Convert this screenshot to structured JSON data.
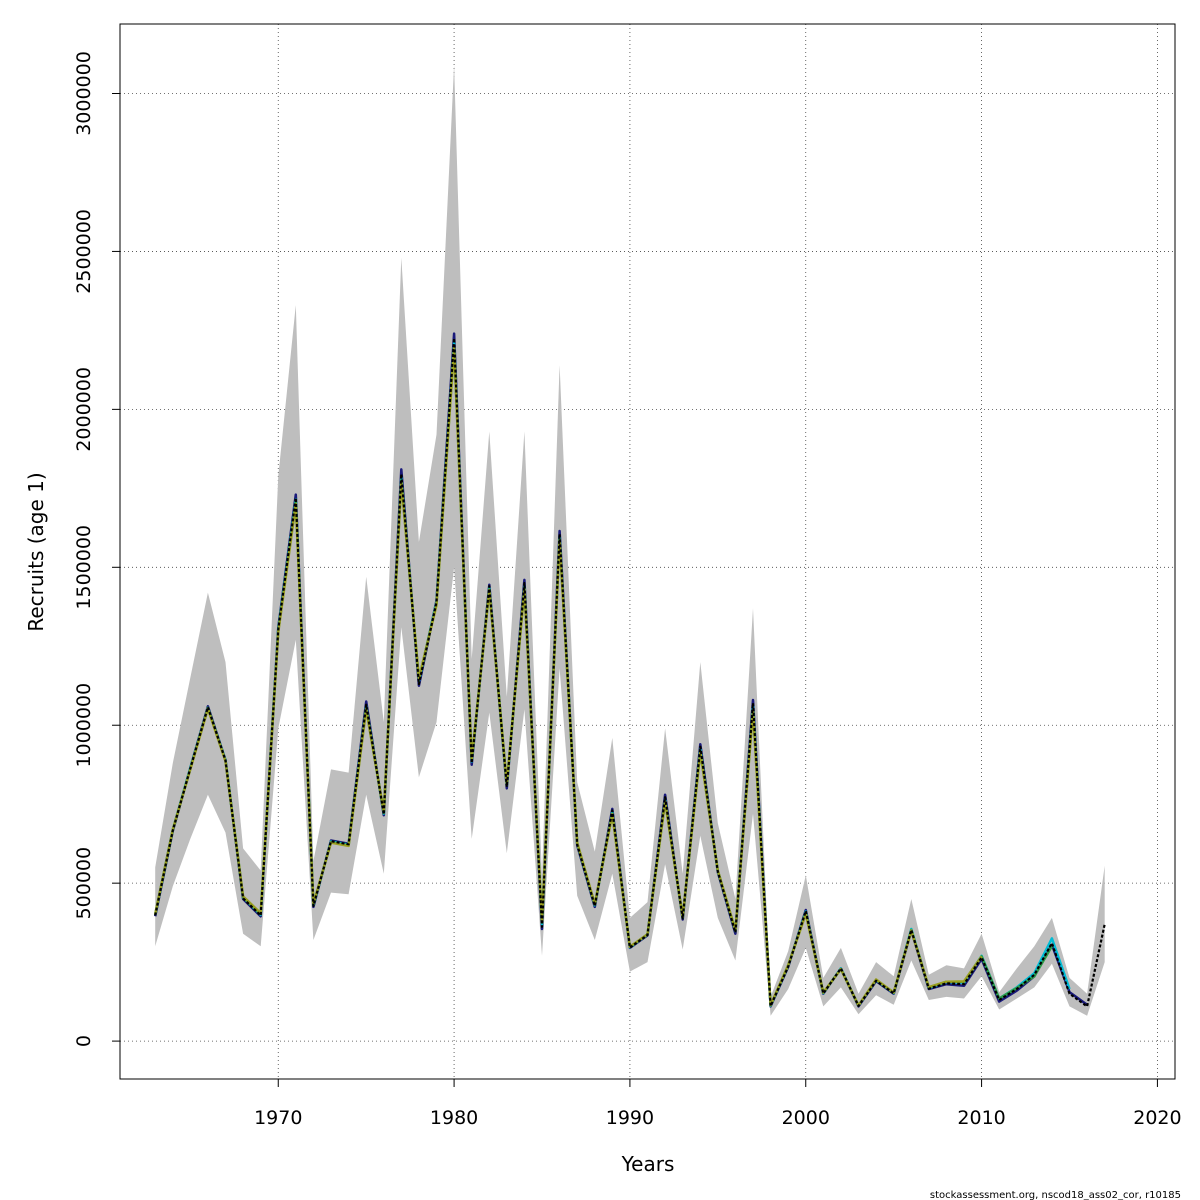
{
  "chart_data": {
    "type": "line",
    "title": "",
    "xlabel": "Years",
    "ylabel": "Recruits (age 1)",
    "xlim": [
      1961,
      2021
    ],
    "ylim": [
      -120000,
      3220000
    ],
    "x_ticks": [
      1970,
      1980,
      1990,
      2000,
      2010,
      2020
    ],
    "y_ticks": [
      0,
      500000,
      1000000,
      1500000,
      2000000,
      2500000,
      3000000
    ],
    "grid": true,
    "legend": "none",
    "credit": "stockassessment.org, nscod18_ass02_cor, r10185",
    "band_color": "#bebebe",
    "band": {
      "x": [
        1963,
        1964,
        1965,
        1966,
        1967,
        1968,
        1969,
        1970,
        1971,
        1972,
        1973,
        1974,
        1975,
        1976,
        1977,
        1978,
        1979,
        1980,
        1981,
        1982,
        1983,
        1984,
        1985,
        1986,
        1987,
        1988,
        1989,
        1990,
        1991,
        1992,
        1993,
        1994,
        1995,
        1996,
        1997,
        1998,
        1999,
        2000,
        2001,
        2002,
        2003,
        2004,
        2005,
        2006,
        2007,
        2008,
        2009,
        2010,
        2011,
        2012,
        2013,
        2014,
        2015,
        2016,
        2017
      ],
      "lower": [
        300000,
        490000,
        640000,
        780000,
        660000,
        340000,
        300000,
        990000,
        1270000,
        320000,
        470000,
        465000,
        780000,
        530000,
        1310000,
        835000,
        1010000,
        1500000,
        640000,
        1040000,
        595000,
        1050000,
        270000,
        1180000,
        460000,
        320000,
        530000,
        220000,
        250000,
        560000,
        290000,
        650000,
        390000,
        255000,
        720000,
        80000,
        165000,
        295000,
        110000,
        170000,
        85000,
        145000,
        115000,
        255000,
        130000,
        140000,
        135000,
        205000,
        100000,
        135000,
        170000,
        245000,
        110000,
        80000,
        250000
      ],
      "upper": [
        550000,
        880000,
        1150000,
        1420000,
        1200000,
        610000,
        540000,
        1790000,
        2330000,
        570000,
        860000,
        850000,
        1470000,
        1010000,
        2480000,
        1580000,
        1920000,
        3090000,
        1210000,
        1930000,
        1090000,
        1930000,
        520000,
        2140000,
        820000,
        600000,
        960000,
        390000,
        440000,
        990000,
        530000,
        1200000,
        690000,
        450000,
        1370000,
        140000,
        285000,
        525000,
        200000,
        295000,
        150000,
        250000,
        205000,
        450000,
        210000,
        240000,
        230000,
        340000,
        155000,
        230000,
        300000,
        390000,
        200000,
        150000,
        555000
      ]
    },
    "series": [
      {
        "color": "#1a1a7a",
        "x": [
          1963,
          1964,
          1965,
          1966,
          1967,
          1968,
          1969,
          1970,
          1971,
          1972,
          1973,
          1974,
          1975,
          1976,
          1977,
          1978,
          1979,
          1980,
          1981,
          1982,
          1983,
          1984,
          1985,
          1986,
          1987,
          1988,
          1989,
          1990,
          1991,
          1992,
          1993,
          1994,
          1995,
          1996,
          1997,
          1998,
          1999,
          2000,
          2001,
          2002,
          2003,
          2004,
          2005,
          2006,
          2007,
          2008,
          2009,
          2010,
          2011,
          2012,
          2013,
          2014,
          2015,
          2016
        ],
        "values": [
          395000,
          665000,
          865000,
          1060000,
          890000,
          450000,
          395000,
          1310000,
          1730000,
          425000,
          635000,
          625000,
          1075000,
          715000,
          1810000,
          1125000,
          1395000,
          2240000,
          875000,
          1445000,
          800000,
          1460000,
          355000,
          1615000,
          620000,
          425000,
          735000,
          295000,
          335000,
          780000,
          385000,
          940000,
          535000,
          340000,
          1080000,
          110000,
          235000,
          415000,
          150000,
          230000,
          110000,
          190000,
          150000,
          350000,
          165000,
          180000,
          175000,
          260000,
          125000,
          160000,
          205000,
          305000,
          155000,
          115000
        ]
      },
      {
        "color": "#00bcd4",
        "x": [
          1963,
          1964,
          1965,
          1966,
          1967,
          1968,
          1969,
          1970,
          1971,
          1972,
          1973,
          1974,
          1975,
          1976,
          1977,
          1978,
          1979,
          1980,
          1981,
          1982,
          1983,
          1984,
          1985,
          1986,
          1987,
          1988,
          1989,
          1990,
          1991,
          1992,
          1993,
          1994,
          1995,
          1996,
          1997,
          1998,
          1999,
          2000,
          2001,
          2002,
          2003,
          2004,
          2005,
          2006,
          2007,
          2008,
          2009,
          2010,
          2011,
          2012,
          2013,
          2014,
          2015
        ],
        "values": [
          400000,
          670000,
          865000,
          1055000,
          890000,
          455000,
          400000,
          1305000,
          1715000,
          430000,
          632000,
          622000,
          1060000,
          720000,
          1785000,
          1140000,
          1390000,
          2210000,
          885000,
          1435000,
          810000,
          1440000,
          370000,
          1595000,
          625000,
          430000,
          725000,
          297000,
          337000,
          765000,
          390000,
          925000,
          538000,
          348000,
          1060000,
          112000,
          238000,
          410000,
          152000,
          230000,
          112000,
          193000,
          152000,
          355000,
          168000,
          187000,
          185000,
          270000,
          135000,
          170000,
          215000,
          325000,
          165000
        ]
      },
      {
        "color": "#2e9d4a",
        "x": [
          1963,
          1964,
          1965,
          1966,
          1967,
          1968,
          1969,
          1970,
          1971,
          1972,
          1973,
          1974,
          1975,
          1976,
          1977,
          1978,
          1979,
          1980,
          1981,
          1982,
          1983,
          1984,
          1985,
          1986,
          1987,
          1988,
          1989,
          1990,
          1991,
          1992,
          1993,
          1994,
          1995,
          1996,
          1997,
          1998,
          1999,
          2000,
          2001,
          2002,
          2003,
          2004,
          2005,
          2006,
          2007,
          2008,
          2009,
          2010,
          2011,
          2012,
          2013,
          2014
        ],
        "values": [
          400000,
          668000,
          862000,
          1055000,
          888000,
          455000,
          402000,
          1300000,
          1705000,
          432000,
          630000,
          620000,
          1055000,
          722000,
          1775000,
          1145000,
          1385000,
          2200000,
          888000,
          1430000,
          812000,
          1435000,
          375000,
          1590000,
          627000,
          432000,
          720000,
          298000,
          338000,
          760000,
          392000,
          918000,
          540000,
          350000,
          1050000,
          113000,
          240000,
          405000,
          153000,
          228000,
          113000,
          194000,
          153000,
          352000,
          170000,
          188000,
          188000,
          268000,
          135000,
          168000,
          205000,
          300000
        ]
      },
      {
        "color": "#9aa020",
        "x": [
          1963,
          1964,
          1965,
          1966,
          1967,
          1968,
          1969,
          1970,
          1971,
          1972,
          1973,
          1974,
          1975,
          1976,
          1977,
          1978,
          1979,
          1980,
          1981,
          1982,
          1983,
          1984,
          1985,
          1986,
          1987,
          1988,
          1989,
          1990,
          1991,
          1992,
          1993,
          1994,
          1995,
          1996,
          1997,
          1998,
          1999,
          2000,
          2001,
          2002,
          2003,
          2004,
          2005,
          2006,
          2007,
          2008,
          2009,
          2010
        ],
        "values": [
          402000,
          670000,
          860000,
          1052000,
          886000,
          458000,
          405000,
          1295000,
          1700000,
          435000,
          628000,
          618000,
          1050000,
          725000,
          1770000,
          1148000,
          1380000,
          2195000,
          890000,
          1428000,
          815000,
          1430000,
          378000,
          1585000,
          628000,
          433000,
          718000,
          299000,
          338000,
          758000,
          393000,
          915000,
          540000,
          350000,
          1045000,
          114000,
          240000,
          403000,
          154000,
          228000,
          113000,
          195000,
          154000,
          350000,
          171000,
          188000,
          189000,
          268000
        ]
      },
      {
        "color": "#000000",
        "dashed": true,
        "x": [
          1963,
          1964,
          1965,
          1966,
          1967,
          1968,
          1969,
          1970,
          1971,
          1972,
          1973,
          1974,
          1975,
          1976,
          1977,
          1978,
          1979,
          1980,
          1981,
          1982,
          1983,
          1984,
          1985,
          1986,
          1987,
          1988,
          1989,
          1990,
          1991,
          1992,
          1993,
          1994,
          1995,
          1996,
          1997,
          1998,
          1999,
          2000,
          2001,
          2002,
          2003,
          2004,
          2005,
          2006,
          2007,
          2008,
          2009,
          2010,
          2011,
          2012,
          2013,
          2014,
          2015,
          2016,
          2017
        ],
        "values": [
          398000,
          667000,
          863000,
          1057000,
          889000,
          452000,
          398000,
          1305000,
          1720000,
          428000,
          633000,
          623000,
          1065000,
          718000,
          1795000,
          1130000,
          1390000,
          2225000,
          880000,
          1440000,
          805000,
          1450000,
          362000,
          1605000,
          622000,
          428000,
          730000,
          296000,
          336000,
          772000,
          388000,
          932000,
          537000,
          344000,
          1070000,
          111000,
          236000,
          412000,
          151000,
          230000,
          111000,
          191000,
          151000,
          352000,
          166000,
          183000,
          180000,
          265000,
          130000,
          165000,
          210000,
          310000,
          150000,
          110000,
          370000
        ]
      }
    ]
  }
}
